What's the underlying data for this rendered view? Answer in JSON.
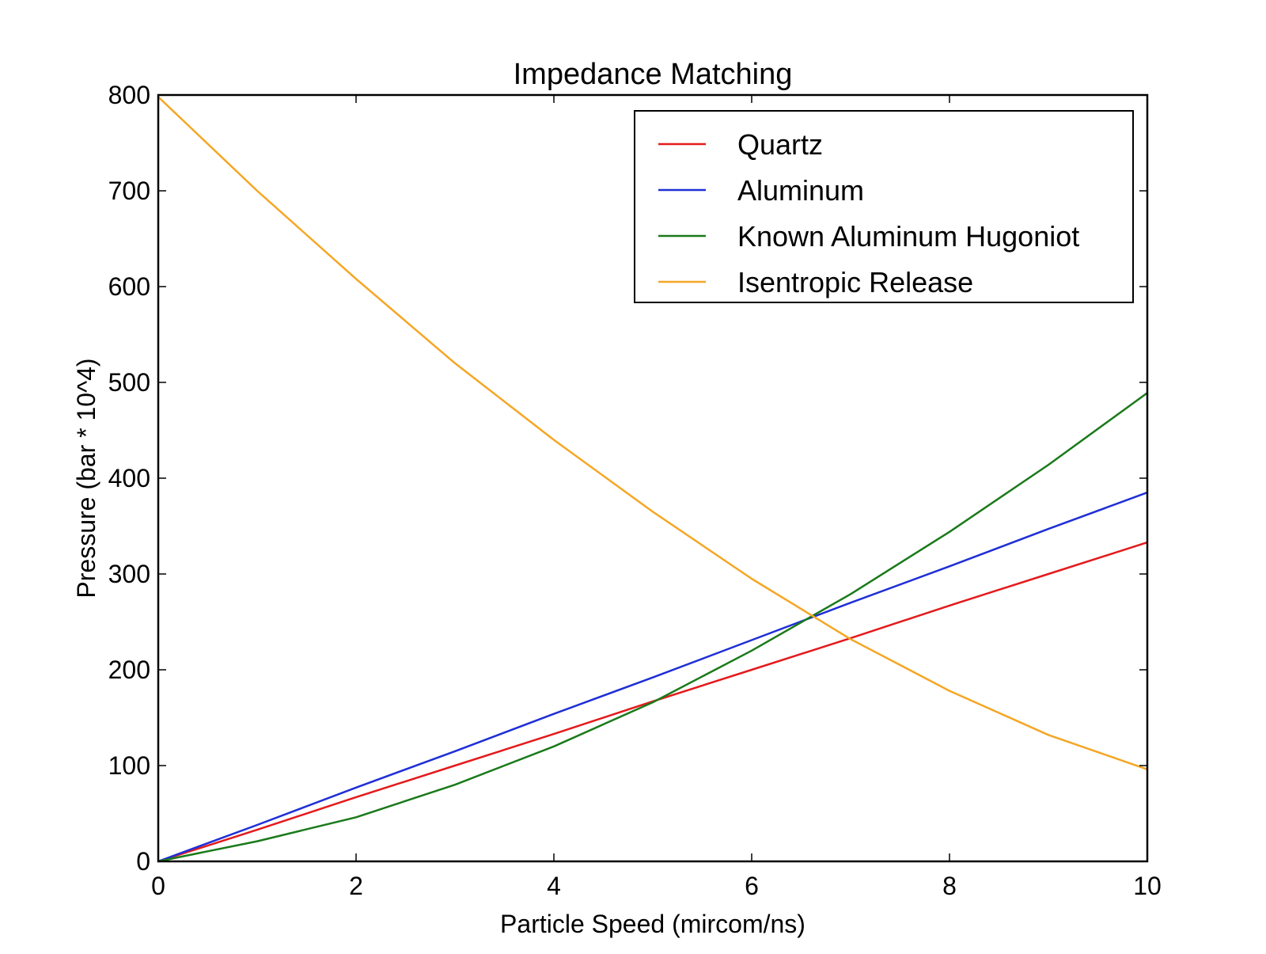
{
  "chart_data": {
    "type": "line",
    "title": "Impedance Matching",
    "xlabel": "Particle Speed (mircom/ns)",
    "ylabel": "Pressure (bar * 10^4)",
    "xlim": [
      0,
      10
    ],
    "ylim": [
      0,
      800
    ],
    "xticks": [
      0,
      2,
      4,
      6,
      8,
      10
    ],
    "yticks": [
      0,
      100,
      200,
      300,
      400,
      500,
      600,
      700,
      800
    ],
    "xtick_labels": [
      "0",
      "2",
      "4",
      "6",
      "8",
      "10"
    ],
    "ytick_labels": [
      "0",
      "100",
      "200",
      "300",
      "400",
      "500",
      "600",
      "700",
      "800"
    ],
    "grid": false,
    "legend_position": "top-right",
    "x": [
      0,
      1,
      2,
      3,
      4,
      5,
      6,
      7,
      8,
      9,
      10
    ],
    "series": [
      {
        "name": "Quartz",
        "color": "#e41a1c",
        "values": [
          0,
          33,
          67,
          100,
          133,
          167,
          200,
          233,
          267,
          300,
          333
        ]
      },
      {
        "name": "Aluminum",
        "color": "#1f2fd6",
        "values": [
          0,
          38,
          77,
          115,
          154,
          192,
          231,
          270,
          308,
          347,
          385
        ]
      },
      {
        "name": "Known Aluminum Hugoniot",
        "color": "#1a7a1a",
        "values": [
          0,
          21,
          46,
          80,
          120,
          166,
          220,
          279,
          344,
          414,
          489
        ]
      },
      {
        "name": "Isentropic Release",
        "color": "#f5a623",
        "values": [
          798,
          700,
          608,
          520,
          440,
          365,
          295,
          232,
          178,
          132,
          96
        ]
      }
    ]
  }
}
